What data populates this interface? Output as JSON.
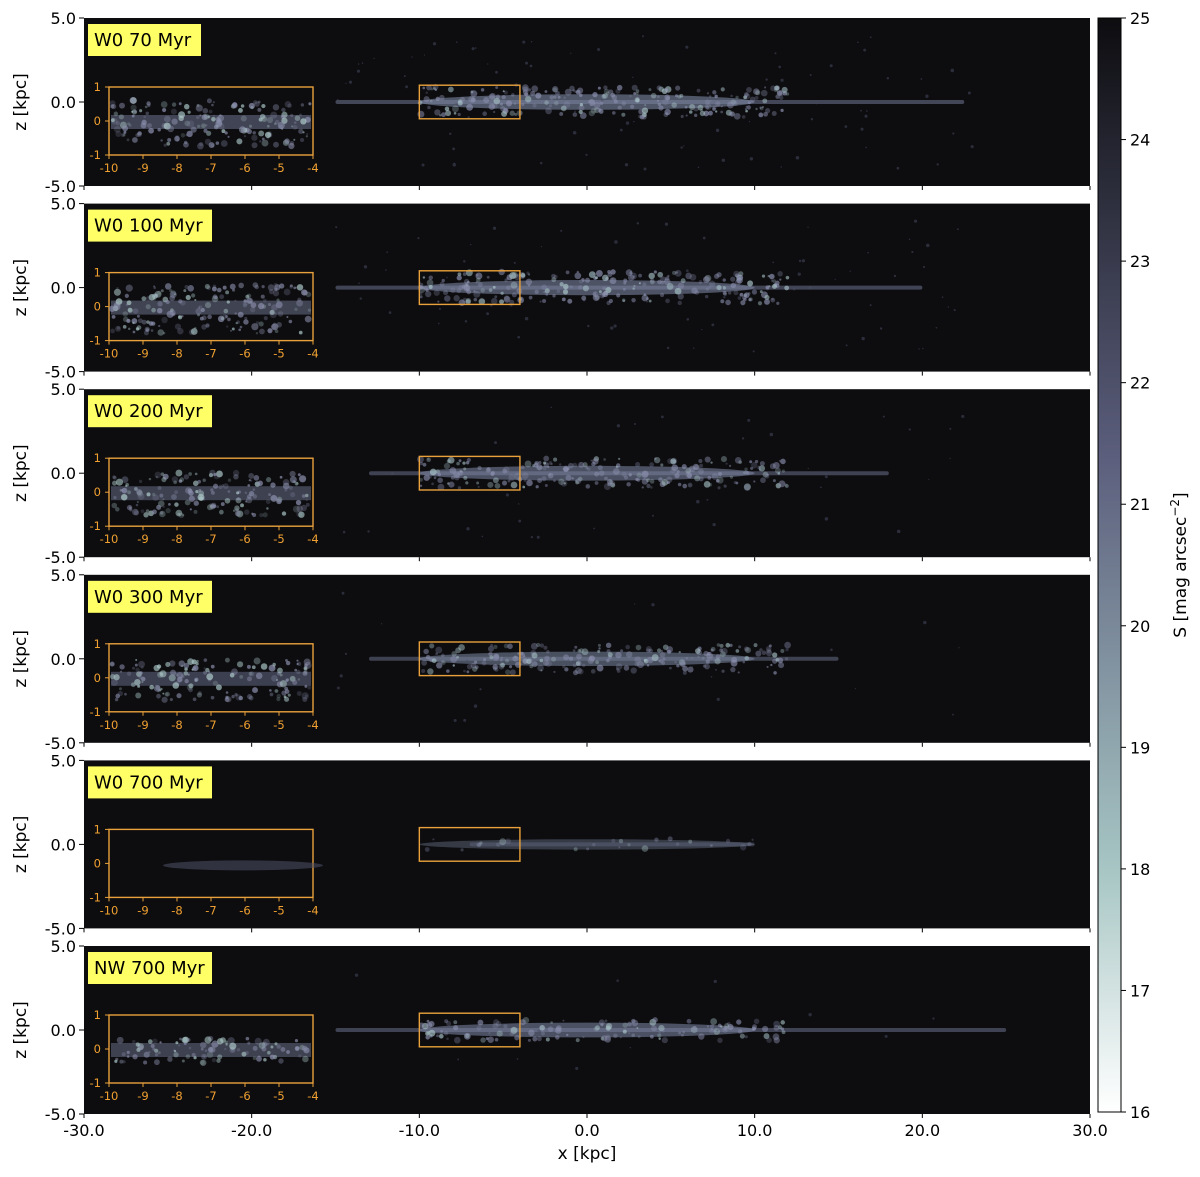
{
  "chart_data": {
    "type": "heatmap",
    "xlabel": "x [kpc]",
    "ylabel": "z [kpc]",
    "xlim": [
      -30,
      30
    ],
    "ylim": [
      -5,
      5
    ],
    "x_ticks": [
      "-30.0",
      "-20.0",
      "-10.0",
      "0.0",
      "10.0",
      "20.0",
      "30.0"
    ],
    "y_ticks": [
      "5.0",
      "0.0",
      "-5.0"
    ],
    "colorbar": {
      "label": "S [mag arcsec",
      "label_sup": "−2",
      "label_end": "]",
      "range": [
        16,
        25
      ],
      "ticks": [
        "25",
        "24",
        "23",
        "22",
        "21",
        "20",
        "19",
        "18",
        "17",
        "16"
      ],
      "colors": [
        "#ffffff",
        "#a7c6c4",
        "#5b5e7c",
        "#0d0d10"
      ]
    },
    "zoom_box": {
      "x": [
        -10,
        -4
      ],
      "z": [
        -1,
        1
      ]
    },
    "inset": {
      "x_ticks": [
        "-10",
        "-9",
        "-8",
        "-7",
        "-6",
        "-5",
        "-4"
      ],
      "y_ticks": [
        "1",
        "0",
        "-1"
      ],
      "border_color": "#e9a13b"
    },
    "panels": [
      {
        "label": "W0 70 Myr",
        "disk_x": [
          -15,
          22.5
        ],
        "brightness": 0.95,
        "clumpiness": 0.9,
        "halo": 0.7
      },
      {
        "label": "W0 100 Myr",
        "disk_x": [
          -15,
          20
        ],
        "brightness": 0.9,
        "clumpiness": 0.95,
        "halo": 0.6
      },
      {
        "label": "W0 200 Myr",
        "disk_x": [
          -13,
          18
        ],
        "brightness": 0.85,
        "clumpiness": 0.85,
        "halo": 0.3
      },
      {
        "label": "W0 300 Myr",
        "disk_x": [
          -13,
          15
        ],
        "brightness": 0.8,
        "clumpiness": 0.8,
        "halo": 0.2
      },
      {
        "label": "W0 700 Myr",
        "disk_x": [
          -7,
          10
        ],
        "brightness": 0.3,
        "clumpiness": 0.1,
        "halo": 0.0
      },
      {
        "label": "NW 700 Myr",
        "disk_x": [
          -15,
          25
        ],
        "brightness": 0.85,
        "clumpiness": 0.5,
        "halo": 0.1
      }
    ]
  }
}
